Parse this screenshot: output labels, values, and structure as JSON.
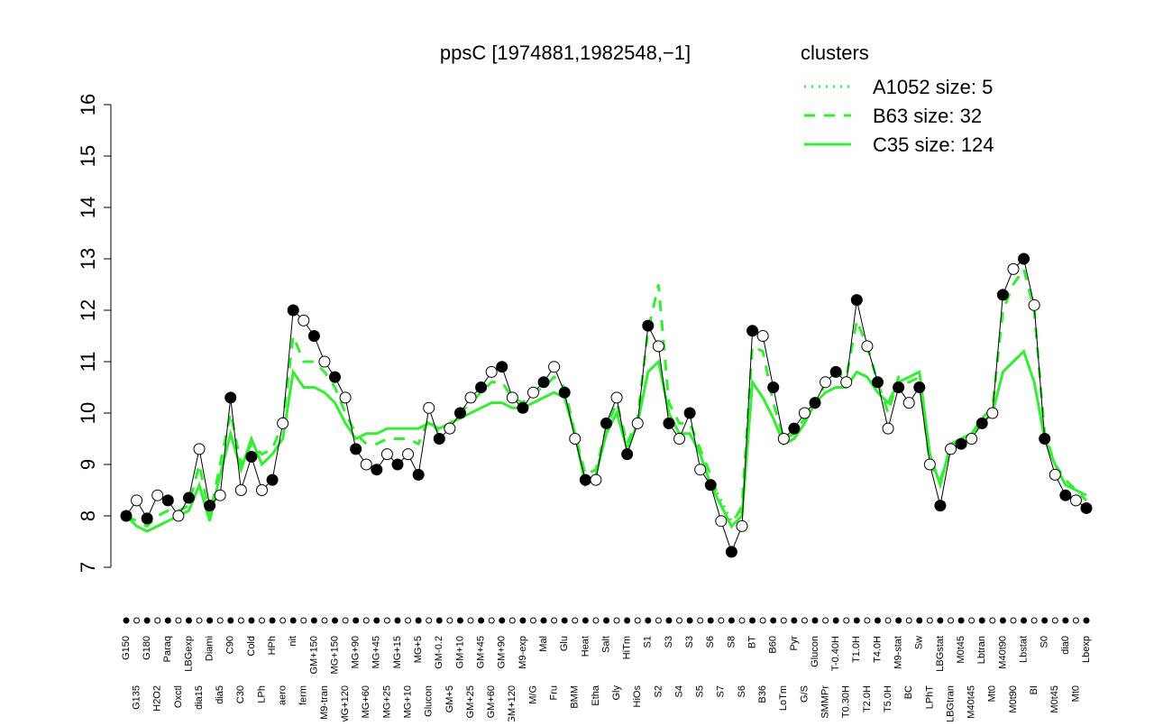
{
  "chart_data": {
    "type": "line",
    "title": "ppsC [1974881,1982548,−1]",
    "legend_title": "clusters",
    "legend_color": "#33ee33",
    "categories": [
      "G150",
      "G135",
      "G180",
      "H2O2",
      "Paraq",
      "Oxctl",
      "LBGexp",
      "dia15",
      "Diami",
      "dia5",
      "C90",
      "C30",
      "Cold",
      "LPh",
      "HPh",
      "aero",
      "nit",
      "ferm",
      "GM+150",
      "M9-tran",
      "MG+150",
      "MG+120",
      "MG+90",
      "MG+60",
      "MG+45",
      "MG+25",
      "MG+15",
      "MG+10",
      "MG+5",
      "Glucon",
      "GM-0.2",
      "GM+5",
      "GM+10",
      "GM+25",
      "GM+45",
      "GM+60",
      "GM+90",
      "GM+120",
      "M9-exp",
      "M/G",
      "Mal",
      "Fru",
      "Glu",
      "BMM",
      "Heat",
      "Etha",
      "Salt",
      "Gly",
      "HiTm",
      "HiOs",
      "S1",
      "S2",
      "S3",
      "S4",
      "S3",
      "S5",
      "S6",
      "S7",
      "S8",
      "S6",
      "BT",
      "B36",
      "B60",
      "LoTm",
      "Pyr",
      "G/S",
      "Glucon",
      "SMMPr",
      "T-0.40H",
      "T0.30H",
      "T1.0H",
      "T2.0H",
      "T4.0H",
      "T5.0H",
      "M9-stat",
      "BC",
      "Sw",
      "LPhT",
      "LBGstat",
      "LBGtran",
      "M0t45",
      "M40t45",
      "Lbtran",
      "Mt0",
      "M40t90",
      "M0t90",
      "Lbstat",
      "BI",
      "S0",
      "M0t45",
      "dia0",
      "Mt0",
      "Lbexp"
    ],
    "values": [
      8.0,
      8.3,
      7.95,
      8.4,
      8.3,
      8.0,
      8.35,
      9.3,
      8.2,
      8.4,
      10.3,
      8.5,
      9.15,
      8.5,
      8.7,
      9.8,
      12.0,
      11.8,
      11.5,
      11.0,
      10.7,
      10.3,
      9.3,
      9.0,
      8.9,
      9.2,
      9.0,
      9.2,
      8.8,
      10.1,
      9.5,
      9.7,
      10.0,
      10.3,
      10.5,
      10.8,
      10.9,
      10.3,
      10.1,
      10.4,
      10.6,
      10.9,
      10.4,
      9.5,
      8.7,
      8.7,
      9.8,
      10.3,
      9.2,
      9.8,
      11.7,
      11.3,
      9.8,
      9.5,
      10.0,
      8.9,
      8.6,
      7.9,
      7.3,
      7.8,
      11.6,
      11.5,
      10.5,
      9.5,
      9.7,
      10.0,
      10.2,
      10.6,
      10.8,
      10.6,
      12.2,
      11.3,
      10.6,
      9.7,
      10.5,
      10.2,
      10.5,
      9.0,
      8.2,
      9.3,
      9.4,
      9.5,
      9.8,
      10.0,
      12.3,
      12.8,
      13.0,
      12.1,
      9.5,
      8.8,
      8.4,
      8.3,
      8.15
    ],
    "series": [
      {
        "name": "A1052 size: 5",
        "color": "#33ee33",
        "style": "dotted",
        "values": [
          null,
          null,
          null,
          null,
          null,
          null,
          null,
          null,
          null,
          null,
          null,
          null,
          null,
          null,
          null,
          null,
          null,
          null,
          null,
          null,
          null,
          null,
          null,
          null,
          null,
          null,
          null,
          null,
          null,
          null,
          null,
          null,
          null,
          null,
          null,
          null,
          null,
          null,
          null,
          null,
          null,
          null,
          null,
          null,
          null,
          null,
          null,
          null,
          null,
          null,
          null,
          null,
          null,
          null,
          null,
          null,
          8.7,
          8.3,
          7.9,
          8.1,
          null,
          null,
          null,
          null,
          null,
          null,
          null,
          null,
          null,
          null,
          null,
          null,
          null,
          null,
          null,
          null,
          null,
          null,
          null,
          null,
          null,
          null,
          null,
          null,
          null,
          null,
          null,
          null,
          null,
          null,
          null,
          null,
          null
        ]
      },
      {
        "name": "B63 size: 32",
        "color": "#33ee33",
        "style": "dashed",
        "values": [
          8.0,
          7.9,
          7.8,
          8.0,
          8.1,
          8.1,
          8.2,
          9.0,
          8.0,
          9.0,
          10.0,
          9.0,
          9.4,
          9.2,
          9.3,
          9.8,
          11.5,
          11.0,
          11.0,
          10.8,
          10.5,
          10.0,
          9.6,
          9.4,
          9.4,
          9.5,
          9.5,
          9.5,
          9.4,
          9.9,
          9.6,
          9.8,
          10.0,
          10.2,
          10.4,
          10.6,
          10.6,
          10.3,
          10.2,
          10.4,
          10.5,
          10.7,
          10.5,
          9.6,
          8.8,
          8.9,
          9.7,
          10.2,
          9.4,
          9.9,
          11.6,
          12.5,
          10.2,
          9.8,
          9.8,
          9.3,
          8.8,
          8.2,
          7.8,
          8.2,
          11.3,
          11.2,
          10.2,
          9.5,
          9.6,
          9.9,
          10.1,
          10.6,
          10.8,
          10.7,
          11.8,
          11.3,
          10.6,
          10.0,
          10.7,
          10.6,
          10.7,
          9.0,
          8.7,
          9.3,
          9.5,
          9.6,
          9.9,
          10.1,
          12.0,
          12.5,
          12.8,
          12.0,
          9.6,
          9.0,
          8.7,
          8.5,
          8.3
        ]
      },
      {
        "name": "C35 size: 124",
        "color": "#33ee33",
        "style": "solid",
        "values": [
          8.0,
          7.8,
          7.7,
          7.8,
          7.9,
          8.0,
          8.1,
          8.6,
          7.9,
          8.8,
          9.6,
          8.9,
          9.5,
          9.0,
          9.2,
          9.5,
          10.8,
          10.5,
          10.5,
          10.4,
          10.2,
          9.8,
          9.5,
          9.6,
          9.6,
          9.7,
          9.7,
          9.7,
          9.7,
          9.8,
          9.7,
          9.8,
          9.9,
          10.0,
          10.1,
          10.2,
          10.2,
          10.1,
          10.1,
          10.2,
          10.3,
          10.4,
          10.3,
          9.6,
          8.6,
          8.8,
          9.6,
          10.0,
          9.3,
          9.8,
          10.8,
          11.0,
          10.0,
          9.6,
          9.6,
          9.2,
          8.6,
          8.2,
          7.8,
          8.0,
          10.6,
          10.3,
          9.9,
          9.4,
          9.5,
          9.8,
          10.2,
          10.4,
          10.5,
          10.5,
          10.8,
          10.7,
          10.4,
          10.2,
          10.6,
          10.7,
          10.8,
          9.2,
          8.6,
          9.4,
          9.5,
          9.6,
          9.8,
          10.0,
          10.8,
          11.0,
          11.2,
          10.6,
          9.5,
          9.0,
          8.6,
          8.5,
          8.4
        ]
      }
    ],
    "ylim": [
      7,
      16
    ],
    "yticks": [
      7,
      8,
      9,
      10,
      11,
      12,
      13,
      14,
      15,
      16
    ]
  }
}
